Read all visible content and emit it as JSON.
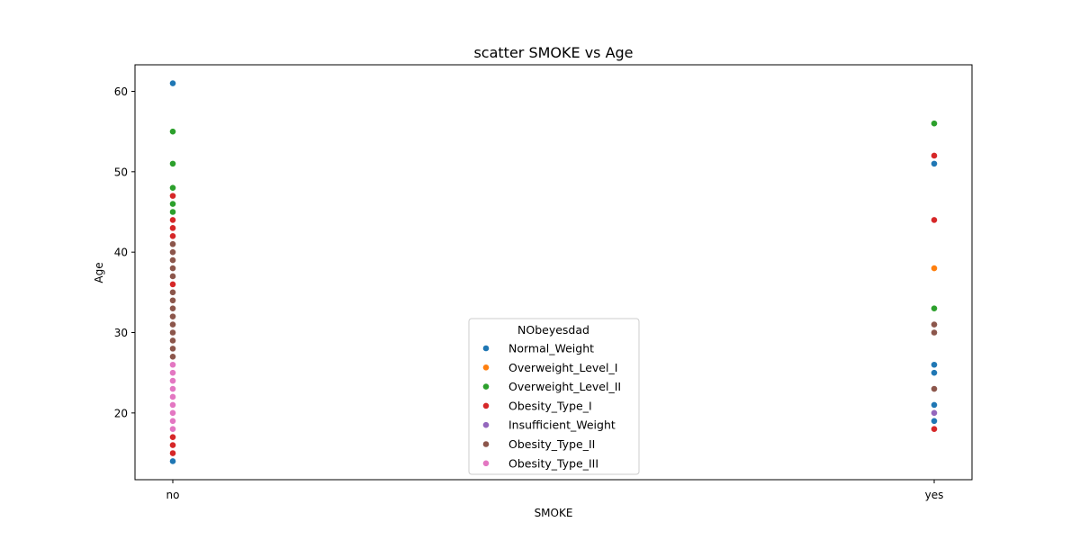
{
  "chart_data": {
    "type": "scatter",
    "title": "scatter SMOKE vs Age",
    "xlabel": "SMOKE",
    "ylabel": "Age",
    "x_categories": [
      "no",
      "yes"
    ],
    "ylim": [
      11.7,
      63.3
    ],
    "yticks": [
      20,
      30,
      40,
      50,
      60
    ],
    "grid": false,
    "legend": {
      "title": "NObeyesdad",
      "placement": "lower-center"
    },
    "series": [
      {
        "name": "Normal_Weight",
        "color": "#1f77b4",
        "points": [
          {
            "x": "no",
            "y": 61
          },
          {
            "x": "no",
            "y": 14
          },
          {
            "x": "yes",
            "y": 51
          },
          {
            "x": "yes",
            "y": 26
          },
          {
            "x": "yes",
            "y": 25
          },
          {
            "x": "yes",
            "y": 21
          },
          {
            "x": "yes",
            "y": 19
          }
        ]
      },
      {
        "name": "Overweight_Level_I",
        "color": "#ff7f0e",
        "points": [
          {
            "x": "yes",
            "y": 38
          }
        ]
      },
      {
        "name": "Overweight_Level_II",
        "color": "#2ca02c",
        "points": [
          {
            "x": "no",
            "y": 55
          },
          {
            "x": "no",
            "y": 51
          },
          {
            "x": "no",
            "y": 48
          },
          {
            "x": "no",
            "y": 46
          },
          {
            "x": "no",
            "y": 45
          },
          {
            "x": "yes",
            "y": 56
          },
          {
            "x": "yes",
            "y": 33
          }
        ]
      },
      {
        "name": "Obesity_Type_I",
        "color": "#d62728",
        "points": [
          {
            "x": "no",
            "y": 47
          },
          {
            "x": "no",
            "y": 44
          },
          {
            "x": "no",
            "y": 43
          },
          {
            "x": "no",
            "y": 42
          },
          {
            "x": "no",
            "y": 36
          },
          {
            "x": "no",
            "y": 17
          },
          {
            "x": "no",
            "y": 16
          },
          {
            "x": "no",
            "y": 15
          },
          {
            "x": "yes",
            "y": 52
          },
          {
            "x": "yes",
            "y": 44
          },
          {
            "x": "yes",
            "y": 18
          }
        ]
      },
      {
        "name": "Insufficient_Weight",
        "color": "#9467bd",
        "points": [
          {
            "x": "yes",
            "y": 20
          }
        ]
      },
      {
        "name": "Obesity_Type_II",
        "color": "#8c564b",
        "points": [
          {
            "x": "no",
            "y": 41
          },
          {
            "x": "no",
            "y": 40
          },
          {
            "x": "no",
            "y": 39
          },
          {
            "x": "no",
            "y": 38
          },
          {
            "x": "no",
            "y": 37
          },
          {
            "x": "no",
            "y": 35
          },
          {
            "x": "no",
            "y": 34
          },
          {
            "x": "no",
            "y": 33
          },
          {
            "x": "no",
            "y": 32
          },
          {
            "x": "no",
            "y": 31
          },
          {
            "x": "no",
            "y": 30
          },
          {
            "x": "no",
            "y": 29
          },
          {
            "x": "no",
            "y": 28
          },
          {
            "x": "no",
            "y": 27
          },
          {
            "x": "yes",
            "y": 31
          },
          {
            "x": "yes",
            "y": 30
          },
          {
            "x": "yes",
            "y": 23
          }
        ]
      },
      {
        "name": "Obesity_Type_III",
        "color": "#e377c2",
        "points": [
          {
            "x": "no",
            "y": 26
          },
          {
            "x": "no",
            "y": 25
          },
          {
            "x": "no",
            "y": 24
          },
          {
            "x": "no",
            "y": 23
          },
          {
            "x": "no",
            "y": 22
          },
          {
            "x": "no",
            "y": 21
          },
          {
            "x": "no",
            "y": 20
          },
          {
            "x": "no",
            "y": 19
          },
          {
            "x": "no",
            "y": 18
          }
        ]
      }
    ]
  }
}
